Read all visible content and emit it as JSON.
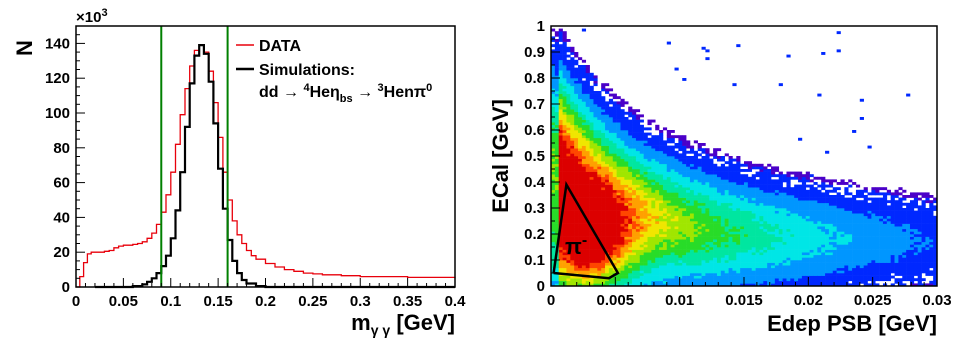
{
  "chart_data": [
    {
      "type": "line",
      "x_label": "m",
      "x_label_sub": "γ γ",
      "x_label_unit": " [GeV]",
      "y_label": "N",
      "y_multiplier": "×10",
      "y_multiplier_exp": "3",
      "xlim": [
        0,
        0.4
      ],
      "ylim": [
        0,
        150
      ],
      "x_ticks": [
        "0",
        "0.05",
        "0.1",
        "0.15",
        "0.2",
        "0.25",
        "0.3",
        "0.35",
        "0.4"
      ],
      "x_tick_values": [
        0,
        0.05,
        0.1,
        0.15,
        0.2,
        0.25,
        0.3,
        0.35,
        0.4
      ],
      "y_ticks": [
        "0",
        "20",
        "40",
        "60",
        "80",
        "100",
        "120",
        "140"
      ],
      "y_tick_values": [
        0,
        20,
        40,
        60,
        80,
        100,
        120,
        140
      ],
      "cut_lines": [
        0.09,
        0.16
      ],
      "legend": {
        "data_label": "DATA",
        "sim_label": "Simulations:",
        "reaction": {
          "a": "dd → ",
          "b": "4",
          "c": "He",
          "d": "η",
          "e": "bs",
          "f": " → ",
          "g": "3",
          "h": "Hen",
          "i": "π",
          "j": "0"
        }
      },
      "series": [
        {
          "name": "DATA",
          "color": "#e8000b",
          "points": [
            [
              0.0,
              0
            ],
            [
              0.004,
              6
            ],
            [
              0.008,
              14
            ],
            [
              0.012,
              19
            ],
            [
              0.016,
              20
            ],
            [
              0.02,
              20
            ],
            [
              0.025,
              20
            ],
            [
              0.03,
              20.5
            ],
            [
              0.035,
              21
            ],
            [
              0.04,
              22.5
            ],
            [
              0.045,
              23.5
            ],
            [
              0.05,
              24
            ],
            [
              0.055,
              24
            ],
            [
              0.06,
              24.5
            ],
            [
              0.065,
              25
            ],
            [
              0.07,
              26
            ],
            [
              0.075,
              28
            ],
            [
              0.08,
              31
            ],
            [
              0.085,
              36
            ],
            [
              0.09,
              43
            ],
            [
              0.095,
              53
            ],
            [
              0.1,
              66
            ],
            [
              0.105,
              82
            ],
            [
              0.11,
              99
            ],
            [
              0.115,
              114
            ],
            [
              0.12,
              127
            ],
            [
              0.125,
              136
            ],
            [
              0.13,
              139
            ],
            [
              0.135,
              135
            ],
            [
              0.14,
              124
            ],
            [
              0.145,
              106
            ],
            [
              0.15,
              86
            ],
            [
              0.155,
              66
            ],
            [
              0.16,
              50
            ],
            [
              0.165,
              38
            ],
            [
              0.17,
              30
            ],
            [
              0.175,
              25
            ],
            [
              0.18,
              21
            ],
            [
              0.185,
              18
            ],
            [
              0.19,
              16
            ],
            [
              0.2,
              13.5
            ],
            [
              0.21,
              11.5
            ],
            [
              0.22,
              10
            ],
            [
              0.23,
              9
            ],
            [
              0.24,
              8
            ],
            [
              0.25,
              7.5
            ],
            [
              0.26,
              7
            ],
            [
              0.28,
              6.5
            ],
            [
              0.3,
              6
            ],
            [
              0.35,
              5.5
            ],
            [
              0.4,
              5
            ]
          ]
        },
        {
          "name": "Simulations:",
          "color": "#000000",
          "points": [
            [
              0.02,
              0
            ],
            [
              0.05,
              0
            ],
            [
              0.06,
              0.5
            ],
            [
              0.07,
              1.5
            ],
            [
              0.075,
              3
            ],
            [
              0.08,
              5
            ],
            [
              0.085,
              8
            ],
            [
              0.09,
              12
            ],
            [
              0.095,
              18
            ],
            [
              0.1,
              28
            ],
            [
              0.105,
              44
            ],
            [
              0.11,
              66
            ],
            [
              0.115,
              92
            ],
            [
              0.12,
              117
            ],
            [
              0.125,
              133
            ],
            [
              0.13,
              139
            ],
            [
              0.135,
              134
            ],
            [
              0.14,
              118
            ],
            [
              0.145,
              94
            ],
            [
              0.15,
              68
            ],
            [
              0.155,
              45
            ],
            [
              0.16,
              27
            ],
            [
              0.165,
              15
            ],
            [
              0.17,
              8
            ],
            [
              0.175,
              4
            ],
            [
              0.18,
              2
            ],
            [
              0.19,
              0.5
            ],
            [
              0.2,
              0
            ],
            [
              0.4,
              0
            ]
          ]
        }
      ]
    },
    {
      "type": "heatmap",
      "x_label": "Edep PSB [GeV]",
      "y_label": "ECal [GeV]",
      "xlim": [
        0,
        0.03
      ],
      "ylim": [
        0,
        1
      ],
      "x_ticks": [
        "0",
        "0.005",
        "0.01",
        "0.015",
        "0.02",
        "0.025",
        "0.03"
      ],
      "x_tick_values": [
        0,
        0.005,
        0.01,
        0.015,
        0.02,
        0.025,
        0.03
      ],
      "y_ticks": [
        "0",
        "0.1",
        "0.2",
        "0.3",
        "0.4",
        "0.5",
        "0.6",
        "0.7",
        "0.8",
        "0.9",
        "1"
      ],
      "y_tick_values": [
        0,
        0.1,
        0.2,
        0.3,
        0.4,
        0.5,
        0.6,
        0.7,
        0.8,
        0.9,
        1
      ],
      "region_label": "π",
      "region_label_sup": "-",
      "region_polygon": [
        [
          0.0002,
          0.05
        ],
        [
          0.0012,
          0.39
        ],
        [
          0.0052,
          0.05
        ],
        [
          0.0045,
          0.03
        ],
        [
          0.0002,
          0.05
        ]
      ],
      "color_scale": [
        "#4b00c8",
        "#0028ff",
        "#0096ff",
        "#00e6e6",
        "#00e6a0",
        "#28dc28",
        "#a0e600",
        "#f0e600",
        "#ffa000",
        "#ff4600",
        "#dc0000"
      ]
    }
  ]
}
